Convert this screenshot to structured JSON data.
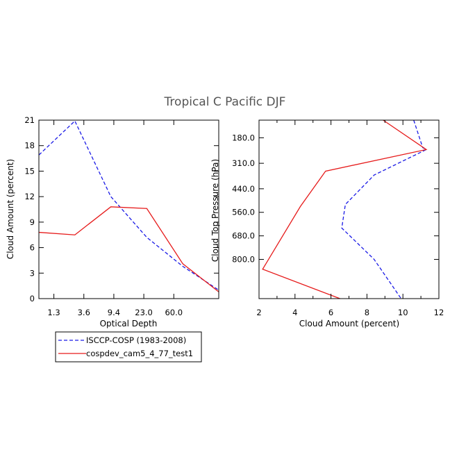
{
  "title": "Tropical C Pacific DJF",
  "colors": {
    "obs": "#1a1ae6",
    "model": "#e61a1a",
    "axis": "#000000"
  },
  "legend": {
    "entries": [
      {
        "label": "ISCCP-COSP (1983-2008)",
        "style": "dashed",
        "color": "#1a1ae6"
      },
      {
        "label": "cospdev_cam5_4_77_test1",
        "style": "solid",
        "color": "#e61a1a"
      }
    ]
  },
  "chart_data": [
    {
      "type": "line",
      "xlabel": "Optical Depth",
      "ylabel": "Cloud Amount (percent)",
      "xlim": [
        0,
        6
      ],
      "ylim": [
        0,
        21
      ],
      "x_ticks": [
        {
          "pos": 0.5,
          "label": "1.3"
        },
        {
          "pos": 1.5,
          "label": "3.6"
        },
        {
          "pos": 2.5,
          "label": "9.4"
        },
        {
          "pos": 3.5,
          "label": "23.0"
        },
        {
          "pos": 4.5,
          "label": "60.0"
        }
      ],
      "y_ticks": [
        0,
        3,
        6,
        9,
        12,
        15,
        18,
        21
      ],
      "series": [
        {
          "name": "ISCCP-COSP (1983-2008)",
          "style": "dashed",
          "color": "#1a1ae6",
          "x": [
            0,
            1.2,
            2.4,
            3.6,
            4.8,
            6.0
          ],
          "y": [
            16.9,
            20.9,
            12.0,
            7.2,
            3.8,
            1.0
          ]
        },
        {
          "name": "cospdev_cam5_4_77_test1",
          "style": "solid",
          "color": "#e61a1a",
          "x": [
            0,
            1.2,
            2.4,
            3.6,
            4.8,
            6.0
          ],
          "y": [
            7.8,
            7.5,
            10.8,
            10.6,
            4.1,
            0.8
          ]
        }
      ]
    },
    {
      "type": "line",
      "xlabel": "Cloud Amount (percent)",
      "ylabel": "Cloud Top Pressure (hPa)",
      "xlim": [
        2,
        12
      ],
      "ylim": [
        1000,
        90
      ],
      "x_ticks": [
        {
          "pos": 2,
          "label": "2"
        },
        {
          "pos": 4,
          "label": "4"
        },
        {
          "pos": 6,
          "label": "6"
        },
        {
          "pos": 8,
          "label": "8"
        },
        {
          "pos": 10,
          "label": "10"
        },
        {
          "pos": 12,
          "label": "12"
        }
      ],
      "y_ticks": [
        {
          "pos": 180,
          "label": "180.0"
        },
        {
          "pos": 310,
          "label": "310.0"
        },
        {
          "pos": 440,
          "label": "440.0"
        },
        {
          "pos": 560,
          "label": "560.0"
        },
        {
          "pos": 680,
          "label": "680.0"
        },
        {
          "pos": 800,
          "label": "800.0"
        }
      ],
      "series": [
        {
          "name": "ISCCP-COSP (1983-2008)",
          "style": "dashed",
          "color": "#1a1ae6",
          "x": [
            10.6,
            11.1,
            11.3,
            8.4,
            6.8,
            6.6,
            8.4,
            9.9
          ],
          "y": [
            90,
            230,
            240,
            370,
            520,
            640,
            800,
            1000
          ]
        },
        {
          "name": "cospdev_cam5_4_77_test1",
          "style": "solid",
          "color": "#e61a1a",
          "x": [
            8.9,
            11.3,
            5.7,
            4.3,
            2.2,
            6.5
          ],
          "y": [
            90,
            240,
            350,
            530,
            850,
            1000
          ]
        }
      ]
    }
  ]
}
